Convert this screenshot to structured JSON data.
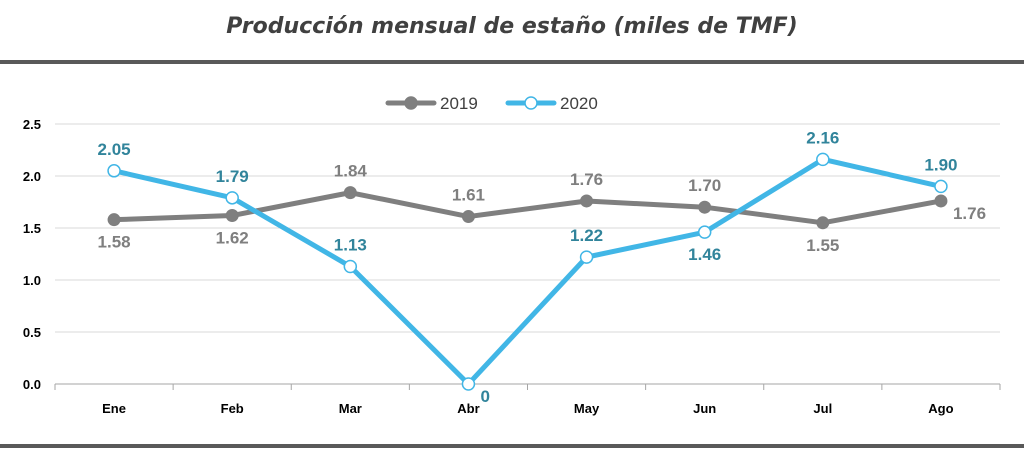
{
  "chart_data": {
    "type": "line",
    "title": "Producción mensual de estaño (miles de TMF)",
    "categories": [
      "Ene",
      "Feb",
      "Mar",
      "Abr",
      "May",
      "Jun",
      "Jul",
      "Ago"
    ],
    "series": [
      {
        "name": "2019",
        "color": "#7f7f7f",
        "values": [
          1.58,
          1.62,
          1.84,
          1.61,
          1.76,
          1.7,
          1.55,
          1.76
        ],
        "labels": [
          "1.58",
          "1.62",
          "1.84",
          "1.61",
          "1.76",
          "1.70",
          "1.55",
          "1.76"
        ],
        "label_color": "#7f7f7f"
      },
      {
        "name": "2020",
        "color": "#41b6e6",
        "values": [
          2.05,
          1.79,
          1.13,
          0,
          1.22,
          1.46,
          2.16,
          1.9
        ],
        "labels": [
          "2.05",
          "1.79",
          "1.13",
          "0",
          "1.22",
          "1.46",
          "2.16",
          "1.90"
        ],
        "label_color": "#31849b"
      }
    ],
    "yticks": [
      "0.0",
      "0.5",
      "1.0",
      "1.5",
      "2.0",
      "2.5"
    ],
    "ylim": [
      0,
      2.5
    ],
    "grid": true,
    "legend": "top-center"
  }
}
